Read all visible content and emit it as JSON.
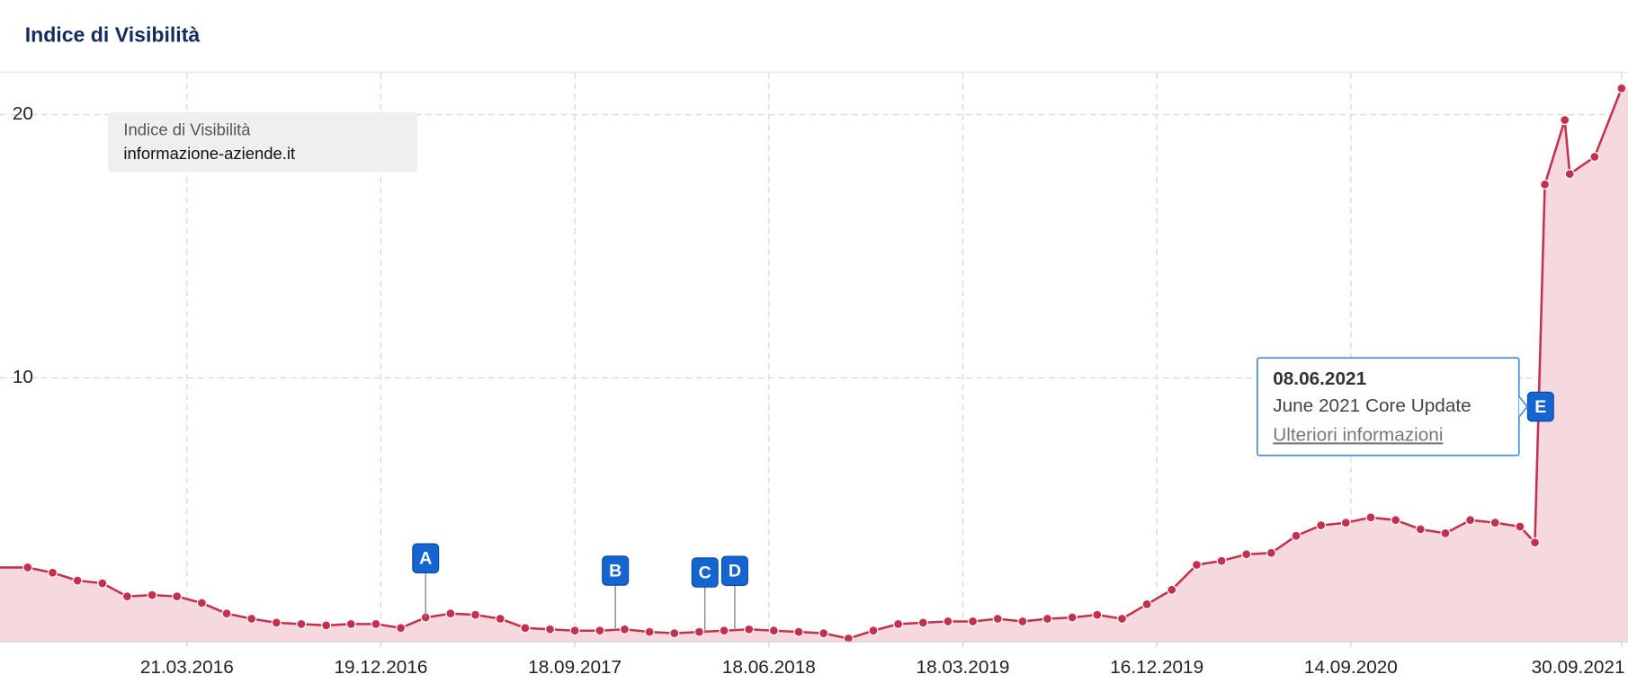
{
  "chart_data": {
    "type": "area",
    "title": "Indice di Visibilità",
    "legend_title": "Indice di Visibilità",
    "x": [
      "10.08.2015",
      "14.09.2015",
      "19.10.2015",
      "23.11.2015",
      "28.12.2015",
      "01.02.2016",
      "07.03.2016",
      "11.04.2016",
      "16.05.2016",
      "20.06.2016",
      "25.07.2016",
      "29.08.2016",
      "03.10.2016",
      "07.11.2016",
      "12.12.2016",
      "16.01.2017",
      "20.02.2017",
      "27.03.2017",
      "01.05.2017",
      "05.06.2017",
      "10.07.2017",
      "14.08.2017",
      "18.09.2017",
      "23.10.2017",
      "27.11.2017",
      "01.01.2018",
      "05.02.2018",
      "12.03.2018",
      "16.04.2018",
      "21.05.2018",
      "25.06.2018",
      "30.07.2018",
      "03.09.2018",
      "08.10.2018",
      "12.11.2018",
      "17.12.2018",
      "21.01.2019",
      "25.02.2019",
      "01.04.2019",
      "06.05.2019",
      "10.06.2019",
      "15.07.2019",
      "19.08.2019",
      "23.09.2019",
      "28.10.2019",
      "02.12.2019",
      "06.01.2020",
      "10.02.2020",
      "16.03.2020",
      "20.04.2020",
      "25.05.2020",
      "29.06.2020",
      "03.08.2020",
      "07.09.2020",
      "12.10.2020",
      "16.11.2020",
      "21.12.2020",
      "25.01.2021",
      "01.03.2021",
      "05.04.2021",
      "10.05.2021",
      "31.05.2021",
      "14.06.2021",
      "12.07.2021",
      "19.07.2021",
      "23.08.2021",
      "30.09.2021"
    ],
    "series": [
      {
        "name": "informazione-aziende.it",
        "color": "#c4314f",
        "fill": "#f5d9de",
        "values": [
          2.8,
          2.6,
          2.3,
          2.2,
          1.7,
          1.75,
          1.7,
          1.45,
          1.05,
          0.85,
          0.7,
          0.65,
          0.6,
          0.65,
          0.65,
          0.5,
          0.9,
          1.05,
          1.0,
          0.85,
          0.5,
          0.45,
          0.4,
          0.4,
          0.45,
          0.35,
          0.3,
          0.35,
          0.4,
          0.45,
          0.4,
          0.35,
          0.3,
          0.1,
          0.4,
          0.65,
          0.7,
          0.75,
          0.75,
          0.85,
          0.75,
          0.85,
          0.9,
          1.0,
          0.85,
          1.4,
          1.95,
          2.9,
          3.05,
          3.3,
          3.35,
          4.0,
          4.4,
          4.5,
          4.7,
          4.6,
          4.25,
          4.1,
          4.6,
          4.5,
          4.35,
          3.75,
          17.35,
          19.8,
          17.75,
          18.4,
          21.0
        ]
      }
    ],
    "xlim": [
      "02.07.2015",
      "09.10.2021"
    ],
    "xticks": [
      "21.03.2016",
      "19.12.2016",
      "18.09.2017",
      "18.06.2018",
      "18.03.2019",
      "16.12.2019",
      "14.09.2020",
      "30.09.2021"
    ],
    "ylim": [
      0,
      21.6
    ],
    "yticks": [
      10,
      20
    ],
    "grid": true,
    "events": [
      {
        "label": "A",
        "x": "20.02.2017"
      },
      {
        "label": "B",
        "x": "14.11.2017"
      },
      {
        "label": "C",
        "x": "20.03.2018"
      },
      {
        "label": "D",
        "x": "01.05.2018"
      },
      {
        "label": "E",
        "x": "08.06.2021"
      }
    ],
    "tooltip": {
      "date": "08.06.2021",
      "text": "June 2021 Core Update",
      "link": "Ulteriori informazioni"
    }
  }
}
